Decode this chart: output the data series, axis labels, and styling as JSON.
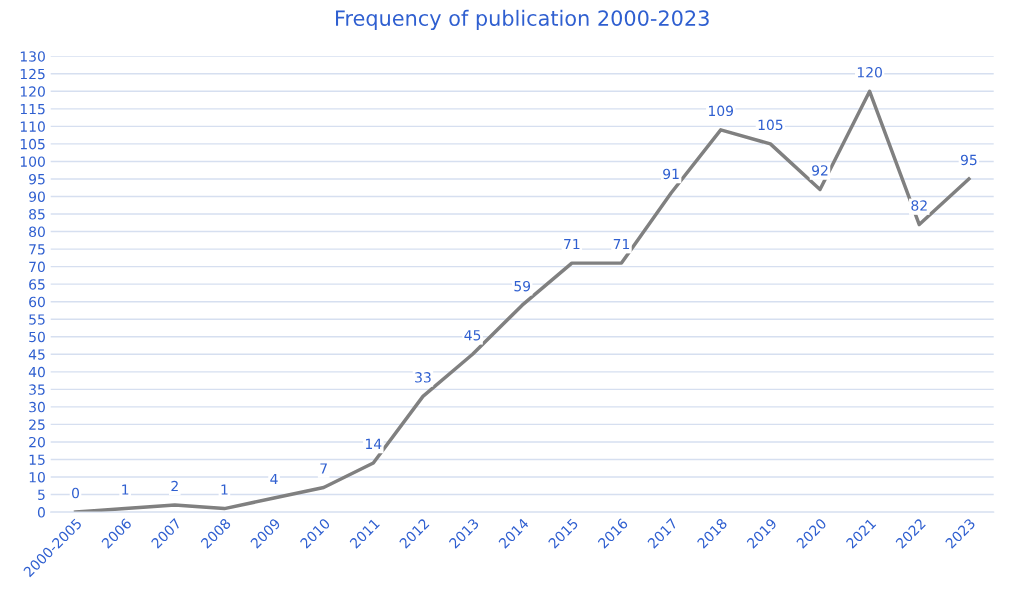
{
  "chart_data": {
    "type": "line",
    "title": "Frequency of publication 2000-2023",
    "categories": [
      "2000-2005",
      "2006",
      "2007",
      "2008",
      "2009",
      "2010",
      "2011",
      "2012",
      "2013",
      "2014",
      "2015",
      "2016",
      "2017",
      "2018",
      "2019",
      "2020",
      "2021",
      "2022",
      "2023"
    ],
    "series": [
      {
        "color": "#808080",
        "values": [
          0,
          1,
          2,
          1,
          4,
          7,
          14,
          33,
          45,
          59,
          71,
          71,
          91,
          109,
          105,
          92,
          120,
          82,
          95
        ]
      }
    ],
    "ylim": [
      0,
      130
    ],
    "yticks": [
      0,
      5,
      10,
      15,
      20,
      25,
      30,
      35,
      40,
      45,
      50,
      55,
      60,
      65,
      70,
      75,
      80,
      85,
      90,
      95,
      100,
      105,
      110,
      115,
      120,
      125,
      130
    ],
    "grid": "y",
    "data_labels": true,
    "marker": "none",
    "line_style": "solid"
  }
}
